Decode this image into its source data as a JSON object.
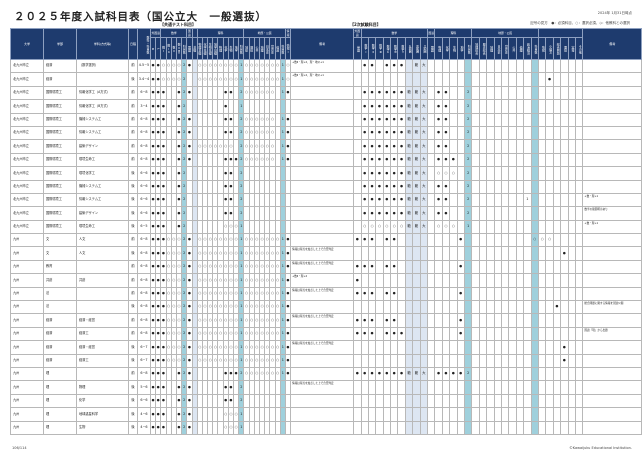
{
  "title": "２０２５年度入試科目表（国公立大　一般選抜）",
  "date": "2024年 1月31日時点",
  "legend": "記号の見方　●：必須科目、○：選択必須、◇：他教科との選択",
  "common_label": "【共通テスト科目】",
  "second_label": "【2次試験科目】",
  "footer_left": "106/114",
  "footer_right": "©Kawaijuku Educational Institution.",
  "colors": {
    "header": "#1e3b6e",
    "count_col": "#9fd0dc",
    "range_col": "#dde6f2"
  },
  "headers": {
    "univ": "大学",
    "faculty": "学部",
    "dept": "学科(方式等)",
    "schedule": "日程",
    "score": "教科・科目数",
    "notes": "備考"
  },
  "common_groups": [
    {
      "label": "外国語",
      "span": 2
    },
    {
      "label": "数学",
      "span": 5
    },
    {
      "label": "国語",
      "span": 1
    },
    {
      "label": "",
      "span": 1
    },
    {
      "label": "理科",
      "span": 9
    },
    {
      "label": "地歴・公民",
      "span": 8
    },
    {
      "label": "情報",
      "span": 1
    }
  ],
  "common_cols": [
    "R",
    "L",
    "数Ⅰ",
    "数ⅠA",
    "数Ⅱ",
    "数ⅡBC",
    "科目数",
    "国語",
    "基礎",
    "物理基礎",
    "化学基礎",
    "生物基礎",
    "地学基礎",
    "物理",
    "化学",
    "生物",
    "地学",
    "科目数",
    "地総",
    "歴総",
    "公共",
    "地理",
    "日本史",
    "世界史",
    "倫政",
    "科目数",
    "情報Ⅰ"
  ],
  "second_groups": [
    {
      "label": "外国語",
      "span": 1
    },
    {
      "label": "数学",
      "span": 9
    },
    {
      "label": "国語",
      "span": 1
    },
    {
      "label": "理科",
      "span": 5
    },
    {
      "label": "地歴・公民",
      "span": 9
    },
    {
      "label": "",
      "span": 6
    }
  ],
  "second_cols": [
    "英語",
    "数学Ⅰ",
    "数学Ⅱ",
    "数学Ⅲ",
    "数学A",
    "数学B",
    "数学C",
    "A範囲",
    "B範囲",
    "C範囲",
    "国語",
    "物理",
    "化学",
    "生物",
    "地学",
    "科目数",
    "地理総合",
    "歴史総合",
    "地理",
    "日本史",
    "世界史",
    "公共",
    "倫理",
    "政治経済",
    "科目数",
    "情報",
    "小論文",
    "総合問題",
    "面接",
    "実技",
    "その他"
  ],
  "rows": [
    {
      "univ": "北九州市立",
      "faculty": "経済",
      "dept": "（数学選択）",
      "sched": "前",
      "score": "4.5~5",
      "c": "●●○○○○2●_○○○○○○○○1○○○○○○○1○",
      "cn": "+数Ⅱ・理+2、理・地公+1",
      "s": "_●●_●●●_範大_____________________",
      "sn": ""
    },
    {
      "univ": "北九州市立",
      "faculty": "経済",
      "dept": "",
      "sched": "後",
      "score": "3.4~4",
      "c": "●●○○○○2__○○○○○○○○1○○○○○○○1○",
      "cn": "+数Ⅱ・理+2、理・地公+1",
      "s": "__________________________●____",
      "sn": ""
    },
    {
      "univ": "北九州市立",
      "faculty": "国際環境工",
      "dept": "情報化学工（A方式）",
      "sched": "前",
      "score": "6~8",
      "c": "●●●__●2●______●●_2○○○○○○_1●",
      "cn": "",
      "s": "_●●●●●●範範大_●●__2_______________",
      "sn": ""
    },
    {
      "univ": "北九州市立",
      "faculty": "国際環境工",
      "dept": "情報化学工（B方式）",
      "sched": "前",
      "score": "3~4",
      "c": "●●●__●2_______●__1_________",
      "cn": "",
      "s": "_●●●●●●範範大_●●__2_______________",
      "sn": ""
    },
    {
      "univ": "北九州市立",
      "faculty": "国際環境工",
      "dept": "機械システム工",
      "sched": "前",
      "score": "6~8",
      "c": "●●●__●2●______●●_2○○○○○○_1●",
      "cn": "",
      "s": "_●●●●●●範範大_●●__2_______________",
      "sn": ""
    },
    {
      "univ": "北九州市立",
      "faculty": "国際環境工",
      "dept": "情報システム工",
      "sched": "前",
      "score": "6~8",
      "c": "●●●__●2●______●●_2○○○○○○_1●",
      "cn": "",
      "s": "_●●●●●●範範大_●●__2_______________",
      "sn": ""
    },
    {
      "univ": "北九州市立",
      "faculty": "国際環境工",
      "dept": "建築デザイン",
      "sched": "前",
      "score": "6~8",
      "c": "●●●__●2●_○○○○○○○_2○○○○○○_1●",
      "cn": "",
      "s": "_●●●●●●範範大_●●__2_______________",
      "sn": ""
    },
    {
      "univ": "北九州市立",
      "faculty": "国際環境工",
      "dept": "環境生命工",
      "sched": "前",
      "score": "6~8",
      "c": "●●●__●2●______●●●2○○○○○○_1●",
      "cn": "",
      "s": "_●●●●●●範範大_●●●_2_______________",
      "sn": ""
    },
    {
      "univ": "北九州市立",
      "faculty": "国際環境工",
      "dept": "環境化学工",
      "sched": "後",
      "score": "6~6",
      "c": "●●●__●2_______●●_2_________",
      "cn": "",
      "s": "_●●●●●●範範大_○○○_2_______________",
      "sn": ""
    },
    {
      "univ": "北九州市立",
      "faculty": "国際環境工",
      "dept": "機械システム工",
      "sched": "後",
      "score": "6~6",
      "c": "●●●__●2_______●●_2_________",
      "cn": "",
      "s": "_●●●●●●範範大_●●__2_______________",
      "sn": ""
    },
    {
      "univ": "北九州市立",
      "faculty": "国際環境工",
      "dept": "情報システム工",
      "sched": "後",
      "score": "6~6",
      "c": "●●●__●2_______●●_2_________",
      "cn": "",
      "s": "_●●●●●●範範大_●●__2_______1_______",
      "sn": "+数・理+1"
    },
    {
      "univ": "北九州市立",
      "faculty": "国際環境工",
      "dept": "建築デザイン",
      "sched": "後",
      "score": "6~6",
      "c": "●●●__●2_______●●_2_________",
      "cn": "",
      "s": "_●●●●●●範範大_●●__2_______________",
      "sn": "数学の範囲明示あり"
    },
    {
      "univ": "北九州市立",
      "faculty": "国際環境工",
      "dept": "環境生命工",
      "sched": "後",
      "score": "6~5",
      "c": "●●●__●2_______○○○1_________",
      "cn": "",
      "s": "_○○○○○○範範大_○○○_1_______________",
      "sn": "+数・理+1"
    },
    {
      "univ": "九州",
      "faculty": "文",
      "dept": "人文",
      "sched": "前",
      "score": "6~8",
      "c": "●●●○○○2●_○○○○○○○○1○○○○○○○1●",
      "cn": "",
      "s": "●●●_●●________●_________○○○_____",
      "sn": ""
    },
    {
      "univ": "九州",
      "faculty": "文",
      "dept": "人文",
      "sched": "後",
      "score": "6~8",
      "c": "●●●○○○2●_○○○○○○○○1○○○○○○○1●",
      "cn": "情報は得点を加点した上で合否判定",
      "s": "____________________________●__",
      "sn": ""
    },
    {
      "univ": "九州",
      "faculty": "教育",
      "dept": "",
      "sched": "前",
      "score": "6~8",
      "c": "●●●○○○2●_○○○○○○○○1○○○○○○○1●",
      "cn": "情報は得点を加点した上で合否判定",
      "s": "●●●_●●________●_________________",
      "sn": ""
    },
    {
      "univ": "九州",
      "faculty": "共創",
      "dept": "共創",
      "sched": "前",
      "score": "6~8",
      "c": "●●●○○○2●_○○○○○○○○1○○○○○○○1●",
      "cn": "+数Ⅱ・理+2",
      "s": "●_______________________________●",
      "sn": ""
    },
    {
      "univ": "九州",
      "faculty": "法",
      "dept": "",
      "sched": "前",
      "score": "6~8",
      "c": "●●●○○○2●_○○○○○○○○1○○○○○○○1●",
      "cn": "情報は得点を加点した上で合否判定",
      "s": "●●●_●●________●________________",
      "sn": ""
    },
    {
      "univ": "九州",
      "faculty": "法",
      "dept": "",
      "sched": "後",
      "score": "6~8",
      "c": "●●●○○○2●_○○○○○○○○1○○○○○○○1●",
      "cn": "",
      "s": "___________________________●____",
      "sn": "総合問題に関する情報を別途公開"
    },
    {
      "univ": "九州",
      "faculty": "経済",
      "dept": "経済・経営",
      "sched": "前",
      "score": "6~8",
      "c": "●●●○○○2●_○○○○○○○○1○○○○○○○1●",
      "cn": "情報は得点を加点した上で合否判定",
      "s": "●●●_●●________●________________",
      "sn": ""
    },
    {
      "univ": "九州",
      "faculty": "経済",
      "dept": "経済工",
      "sched": "前",
      "score": "6~8",
      "c": "●●●○○○2●_○○○○○○○○1○○○○○○○1●",
      "cn": "",
      "s": "●●●_●●●_______●________________",
      "sn": "国語「現」から出題"
    },
    {
      "univ": "九州",
      "faculty": "経済",
      "dept": "経済・経営",
      "sched": "後",
      "score": "6~7",
      "c": "●●●○○○2●_○○○○○○○○1○○○○○○○1●",
      "cn": "情報は得点を加点した上で合否判定",
      "s": "____________________________●___",
      "sn": ""
    },
    {
      "univ": "九州",
      "faculty": "経済",
      "dept": "経済工",
      "sched": "後",
      "score": "6~7",
      "c": "●●●○○○2●_○○○○○○○○1○○○○○○○1●",
      "cn": "",
      "s": "____________________________●___",
      "sn": ""
    },
    {
      "univ": "九州",
      "faculty": "理",
      "dept": "",
      "sched": "前",
      "score": "6~8",
      "c": "●●●__●2●______●●●2○○○○○○○1●",
      "cn": "",
      "s": "●●●●●●●範範大_●●●●2_______________",
      "sn": ""
    },
    {
      "univ": "九州",
      "faculty": "理",
      "dept": "物理",
      "sched": "後",
      "score": "5~6",
      "c": "●●●__●2●______●●_2_________",
      "cn": "情報は得点を加点した上で合否判定",
      "s": "_______________________________",
      "sn": ""
    },
    {
      "univ": "九州",
      "faculty": "理",
      "dept": "化学",
      "sched": "後",
      "score": "6~6",
      "c": "●●●__●2●______●●_2_________",
      "cn": "",
      "s": "_______________________________",
      "sn": ""
    },
    {
      "univ": "九州",
      "faculty": "理",
      "dept": "地球惑星科学",
      "sched": "後",
      "score": "4~6",
      "c": "●●●__●2●______○○○1_________",
      "cn": "",
      "s": "_______________________________",
      "sn": ""
    },
    {
      "univ": "九州",
      "faculty": "理",
      "dept": "生物",
      "sched": "後",
      "score": "4~6",
      "c": "●●●__●2●______○○○1_________",
      "cn": "",
      "s": "_______________________________",
      "sn": ""
    }
  ]
}
